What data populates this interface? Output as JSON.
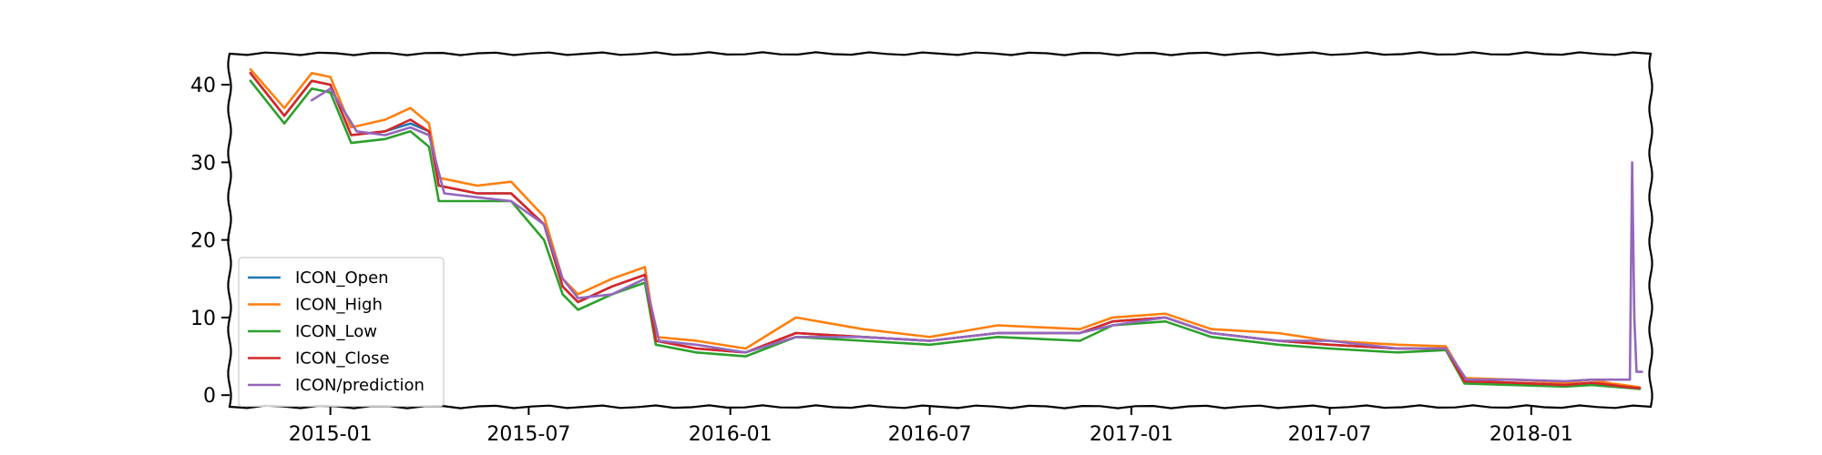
{
  "chart_data": {
    "type": "line",
    "title": "",
    "xlabel": "",
    "ylabel": "",
    "x_range": [
      "2014-10-01",
      "2018-04-20"
    ],
    "ylim": [
      -1.5,
      44
    ],
    "x_ticks": [
      {
        "date": "2015-01-01",
        "label": "2015-01"
      },
      {
        "date": "2015-07-01",
        "label": "2015-07"
      },
      {
        "date": "2016-01-01",
        "label": "2016-01"
      },
      {
        "date": "2016-07-01",
        "label": "2016-07"
      },
      {
        "date": "2017-01-01",
        "label": "2017-01"
      },
      {
        "date": "2017-07-01",
        "label": "2017-07"
      },
      {
        "date": "2018-01-01",
        "label": "2018-01"
      }
    ],
    "y_ticks": [
      0,
      10,
      20,
      30,
      40
    ],
    "y_tick_labels": [
      "0",
      "10",
      "20",
      "30",
      "40"
    ],
    "grid": false,
    "legend_position": "lower-left",
    "series": [
      {
        "name": "ICON_Open",
        "color": "#1f77b4",
        "points": [
          [
            "2014-10-20",
            41.5
          ],
          [
            "2014-11-20",
            36
          ],
          [
            "2014-12-15",
            40.5
          ],
          [
            "2015-01-01",
            40
          ],
          [
            "2015-01-20",
            33.5
          ],
          [
            "2015-02-20",
            34
          ],
          [
            "2015-03-15",
            35
          ],
          [
            "2015-04-01",
            34
          ],
          [
            "2015-04-10",
            27
          ],
          [
            "2015-05-15",
            26
          ],
          [
            "2015-06-15",
            26
          ],
          [
            "2015-07-15",
            22
          ],
          [
            "2015-08-01",
            14
          ],
          [
            "2015-08-15",
            12
          ],
          [
            "2015-09-15",
            14
          ],
          [
            "2015-10-15",
            15.5
          ],
          [
            "2015-10-25",
            7
          ],
          [
            "2015-12-01",
            6
          ],
          [
            "2016-01-15",
            5.5
          ],
          [
            "2016-03-01",
            8
          ],
          [
            "2016-05-01",
            7.5
          ],
          [
            "2016-07-01",
            7
          ],
          [
            "2016-09-01",
            8
          ],
          [
            "2016-11-15",
            8
          ],
          [
            "2016-12-15",
            9.5
          ],
          [
            "2017-02-01",
            10
          ],
          [
            "2017-03-15",
            8
          ],
          [
            "2017-05-15",
            7
          ],
          [
            "2017-07-01",
            6.5
          ],
          [
            "2017-09-01",
            6
          ],
          [
            "2017-10-15",
            6
          ],
          [
            "2017-11-01",
            1.8
          ],
          [
            "2017-12-15",
            1.6
          ],
          [
            "2018-02-01",
            1.3
          ],
          [
            "2018-02-25",
            1.6
          ],
          [
            "2018-03-15",
            1.3
          ],
          [
            "2018-04-01",
            1.0
          ],
          [
            "2018-04-10",
            0.9
          ]
        ]
      },
      {
        "name": "ICON_High",
        "color": "#ff7f0e",
        "points": [
          [
            "2014-10-20",
            42
          ],
          [
            "2014-11-20",
            37
          ],
          [
            "2014-12-15",
            41.5
          ],
          [
            "2015-01-01",
            41
          ],
          [
            "2015-01-20",
            34.5
          ],
          [
            "2015-02-20",
            35.5
          ],
          [
            "2015-03-15",
            37
          ],
          [
            "2015-04-01",
            35
          ],
          [
            "2015-04-10",
            28
          ],
          [
            "2015-05-15",
            27
          ],
          [
            "2015-06-15",
            27.5
          ],
          [
            "2015-07-15",
            23
          ],
          [
            "2015-08-01",
            15
          ],
          [
            "2015-08-15",
            13
          ],
          [
            "2015-09-15",
            15
          ],
          [
            "2015-10-15",
            16.5
          ],
          [
            "2015-10-25",
            7.5
          ],
          [
            "2015-12-01",
            7
          ],
          [
            "2016-01-15",
            6
          ],
          [
            "2016-03-01",
            10
          ],
          [
            "2016-05-01",
            8.5
          ],
          [
            "2016-07-01",
            7.5
          ],
          [
            "2016-09-01",
            9
          ],
          [
            "2016-11-15",
            8.5
          ],
          [
            "2016-12-15",
            10
          ],
          [
            "2017-02-01",
            10.5
          ],
          [
            "2017-03-15",
            8.5
          ],
          [
            "2017-05-15",
            8
          ],
          [
            "2017-07-01",
            7
          ],
          [
            "2017-09-01",
            6.5
          ],
          [
            "2017-10-15",
            6.3
          ],
          [
            "2017-11-01",
            2.2
          ],
          [
            "2017-12-15",
            2
          ],
          [
            "2018-02-01",
            1.6
          ],
          [
            "2018-02-25",
            2
          ],
          [
            "2018-03-15",
            1.5
          ],
          [
            "2018-04-01",
            1.2
          ],
          [
            "2018-04-10",
            1.0
          ]
        ]
      },
      {
        "name": "ICON_Low",
        "color": "#2ca02c",
        "points": [
          [
            "2014-10-20",
            40.5
          ],
          [
            "2014-11-20",
            35
          ],
          [
            "2014-12-15",
            39.5
          ],
          [
            "2015-01-01",
            39
          ],
          [
            "2015-01-20",
            32.5
          ],
          [
            "2015-02-20",
            33
          ],
          [
            "2015-03-15",
            34
          ],
          [
            "2015-04-01",
            32
          ],
          [
            "2015-04-10",
            25
          ],
          [
            "2015-05-15",
            25
          ],
          [
            "2015-06-15",
            25
          ],
          [
            "2015-07-15",
            20
          ],
          [
            "2015-08-01",
            13
          ],
          [
            "2015-08-15",
            11
          ],
          [
            "2015-09-15",
            13
          ],
          [
            "2015-10-15",
            14.5
          ],
          [
            "2015-10-25",
            6.5
          ],
          [
            "2015-12-01",
            5.5
          ],
          [
            "2016-01-15",
            5
          ],
          [
            "2016-03-01",
            7.5
          ],
          [
            "2016-05-01",
            7
          ],
          [
            "2016-07-01",
            6.5
          ],
          [
            "2016-09-01",
            7.5
          ],
          [
            "2016-11-15",
            7
          ],
          [
            "2016-12-15",
            9
          ],
          [
            "2017-02-01",
            9.5
          ],
          [
            "2017-03-15",
            7.5
          ],
          [
            "2017-05-15",
            6.5
          ],
          [
            "2017-07-01",
            6
          ],
          [
            "2017-09-01",
            5.5
          ],
          [
            "2017-10-15",
            5.8
          ],
          [
            "2017-11-01",
            1.5
          ],
          [
            "2017-12-15",
            1.3
          ],
          [
            "2018-02-01",
            1.1
          ],
          [
            "2018-02-25",
            1.3
          ],
          [
            "2018-03-15",
            1.1
          ],
          [
            "2018-04-01",
            0.9
          ],
          [
            "2018-04-10",
            0.8
          ]
        ]
      },
      {
        "name": "ICON_Close",
        "color": "#d62728",
        "points": [
          [
            "2014-10-20",
            41.5
          ],
          [
            "2014-11-20",
            36
          ],
          [
            "2014-12-15",
            40.5
          ],
          [
            "2015-01-01",
            40
          ],
          [
            "2015-01-20",
            33.5
          ],
          [
            "2015-02-20",
            34
          ],
          [
            "2015-03-15",
            35.5
          ],
          [
            "2015-04-01",
            34
          ],
          [
            "2015-04-10",
            27
          ],
          [
            "2015-05-15",
            26
          ],
          [
            "2015-06-15",
            26
          ],
          [
            "2015-07-15",
            22
          ],
          [
            "2015-08-01",
            14
          ],
          [
            "2015-08-15",
            12
          ],
          [
            "2015-09-15",
            14
          ],
          [
            "2015-10-15",
            15.5
          ],
          [
            "2015-10-25",
            7
          ],
          [
            "2015-12-01",
            6
          ],
          [
            "2016-01-15",
            5.5
          ],
          [
            "2016-03-01",
            8
          ],
          [
            "2016-05-01",
            7.5
          ],
          [
            "2016-07-01",
            7
          ],
          [
            "2016-09-01",
            8
          ],
          [
            "2016-11-15",
            8
          ],
          [
            "2016-12-15",
            9.5
          ],
          [
            "2017-02-01",
            10
          ],
          [
            "2017-03-15",
            8
          ],
          [
            "2017-05-15",
            7
          ],
          [
            "2017-07-01",
            6.5
          ],
          [
            "2017-09-01",
            6
          ],
          [
            "2017-10-15",
            6
          ],
          [
            "2017-11-01",
            1.8
          ],
          [
            "2017-12-15",
            1.6
          ],
          [
            "2018-02-01",
            1.3
          ],
          [
            "2018-02-25",
            1.6
          ],
          [
            "2018-03-15",
            1.3
          ],
          [
            "2018-04-01",
            1.0
          ],
          [
            "2018-04-10",
            0.9
          ]
        ]
      },
      {
        "name": "ICON/prediction",
        "color": "#9467bd",
        "points": [
          [
            "2014-12-15",
            38
          ],
          [
            "2015-01-01",
            39.5
          ],
          [
            "2015-01-25",
            34
          ],
          [
            "2015-02-20",
            33.5
          ],
          [
            "2015-03-15",
            34.5
          ],
          [
            "2015-04-01",
            33.5
          ],
          [
            "2015-04-15",
            26
          ],
          [
            "2015-05-15",
            25.5
          ],
          [
            "2015-06-15",
            25
          ],
          [
            "2015-07-15",
            22
          ],
          [
            "2015-08-01",
            15
          ],
          [
            "2015-08-15",
            12.5
          ],
          [
            "2015-09-15",
            13
          ],
          [
            "2015-10-15",
            15
          ],
          [
            "2015-10-28",
            7
          ],
          [
            "2015-12-01",
            6.5
          ],
          [
            "2016-01-15",
            5.5
          ],
          [
            "2016-03-01",
            7.5
          ],
          [
            "2016-05-01",
            7.5
          ],
          [
            "2016-07-01",
            7
          ],
          [
            "2016-09-01",
            8
          ],
          [
            "2016-11-15",
            8
          ],
          [
            "2016-12-15",
            9
          ],
          [
            "2017-02-01",
            10
          ],
          [
            "2017-03-15",
            8
          ],
          [
            "2017-05-15",
            7
          ],
          [
            "2017-07-01",
            7
          ],
          [
            "2017-09-01",
            6
          ],
          [
            "2017-10-15",
            6
          ],
          [
            "2017-11-03",
            2
          ],
          [
            "2017-12-15",
            2
          ],
          [
            "2018-02-01",
            1.8
          ],
          [
            "2018-02-25",
            2
          ],
          [
            "2018-03-15",
            2
          ],
          [
            "2018-04-01",
            2
          ],
          [
            "2018-04-03",
            30
          ],
          [
            "2018-04-05",
            10
          ],
          [
            "2018-04-07",
            3
          ],
          [
            "2018-04-12",
            3
          ]
        ]
      }
    ]
  }
}
